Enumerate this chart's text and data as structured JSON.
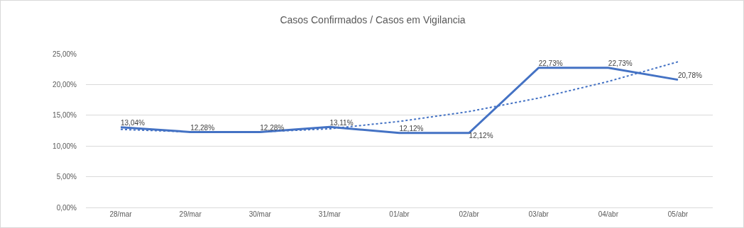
{
  "chart_data": {
    "type": "line",
    "title": "Casos Confirmados / Casos em Vigilancia",
    "categories": [
      "28/mar",
      "29/mar",
      "30/mar",
      "31/mar",
      "01/abr",
      "02/abr",
      "03/abr",
      "04/abr",
      "05/abr"
    ],
    "series": [
      {
        "color": "#4472c4",
        "values": [
          13.04,
          12.28,
          12.28,
          13.11,
          12.12,
          12.12,
          22.73,
          22.73,
          20.78
        ],
        "value_labels": [
          "13,04%",
          "12,28%",
          "12,28%",
          "13,11%",
          "12,12%",
          "12,12%",
          "22,73%",
          "22,73%",
          "20,78%"
        ],
        "line_style": "solid"
      },
      {
        "color": "#4472c4",
        "values": [
          12.7,
          12.3,
          12.3,
          12.8,
          14.0,
          15.6,
          17.8,
          20.5,
          23.7
        ],
        "line_style": "dotted"
      }
    ],
    "ylim": [
      0,
      25
    ],
    "yticks": [
      {
        "value": 0,
        "label": "0,00%"
      },
      {
        "value": 5,
        "label": "5,00%"
      },
      {
        "value": 10,
        "label": "10,00%"
      },
      {
        "value": 15,
        "label": "15,00%"
      },
      {
        "value": 20,
        "label": "20,00%"
      },
      {
        "value": 25,
        "label": "25,00%"
      }
    ],
    "grid": "y",
    "marker": "none"
  }
}
